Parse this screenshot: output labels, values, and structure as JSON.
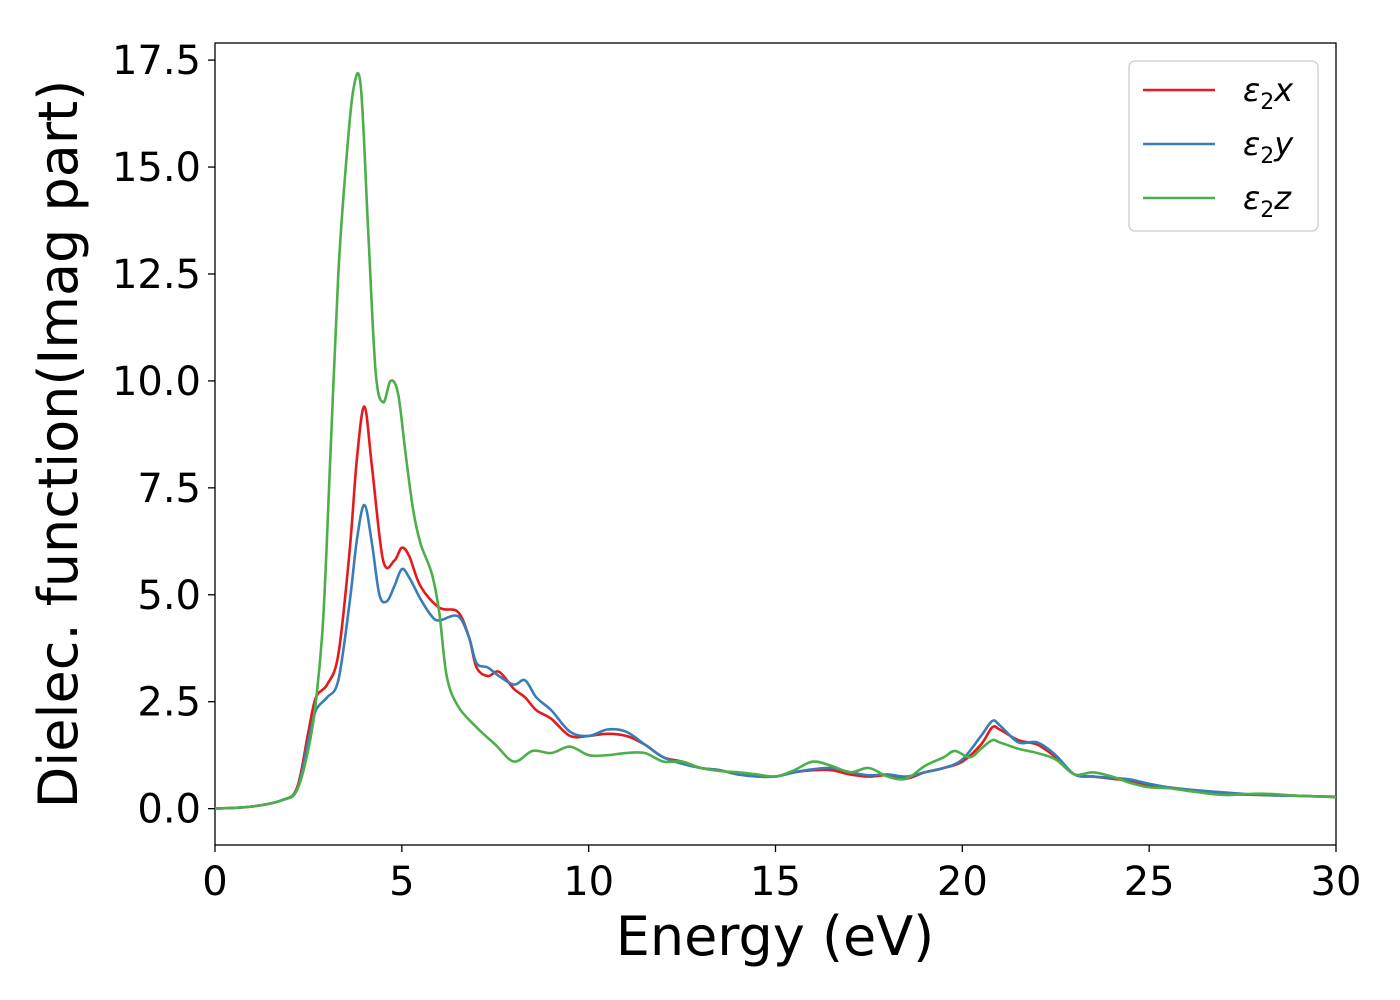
{
  "chart_data": {
    "type": "line",
    "xlabel": "Energy (eV)",
    "ylabel": "Dielec. function(Imag part)",
    "xlim": [
      0,
      30
    ],
    "ylim": [
      -0.85,
      17.9
    ],
    "x_ticks": [
      0,
      5,
      10,
      15,
      20,
      25,
      30
    ],
    "x_tick_labels": [
      "0",
      "5",
      "10",
      "15",
      "20",
      "25",
      "30"
    ],
    "y_ticks": [
      0.0,
      2.5,
      5.0,
      7.5,
      10.0,
      12.5,
      15.0,
      17.5
    ],
    "y_tick_labels": [
      "0.0",
      "2.5",
      "5.0",
      "7.5",
      "10.0",
      "12.5",
      "15.0",
      "17.5"
    ],
    "grid": false,
    "legend_position": "top-right",
    "series": [
      {
        "name": "ε₂x",
        "legend_base": "ε",
        "legend_sub": "2",
        "legend_suffix": "x",
        "color": "#e41a1c",
        "x": [
          0,
          1,
          1.8,
          2.2,
          2.5,
          2.7,
          3.0,
          3.3,
          3.6,
          3.8,
          4.0,
          4.2,
          4.5,
          4.8,
          5.0,
          5.2,
          5.5,
          6.0,
          6.5,
          6.8,
          7.0,
          7.3,
          7.6,
          8.0,
          8.3,
          8.6,
          9.0,
          9.5,
          10.0,
          10.5,
          11.0,
          11.5,
          12.0,
          12.5,
          13.0,
          13.5,
          14.0,
          14.5,
          15.0,
          15.5,
          16.0,
          16.5,
          17.0,
          17.5,
          18.0,
          18.5,
          19.0,
          19.5,
          20.0,
          20.5,
          20.8,
          21.0,
          21.5,
          22.0,
          22.5,
          23.0,
          23.5,
          24.0,
          24.5,
          25.0,
          25.5,
          26.0,
          27.0,
          28.0,
          29.0,
          30.0
        ],
        "y": [
          0.0,
          0.05,
          0.2,
          0.5,
          1.8,
          2.6,
          2.9,
          3.6,
          6.0,
          8.2,
          9.4,
          8.0,
          5.8,
          5.8,
          6.1,
          5.9,
          5.2,
          4.7,
          4.6,
          4.0,
          3.3,
          3.1,
          3.2,
          2.8,
          2.6,
          2.3,
          2.1,
          1.7,
          1.7,
          1.75,
          1.7,
          1.5,
          1.2,
          1.1,
          0.95,
          0.9,
          0.8,
          0.78,
          0.75,
          0.85,
          0.9,
          0.9,
          0.8,
          0.75,
          0.78,
          0.7,
          0.85,
          0.95,
          1.1,
          1.5,
          1.9,
          1.85,
          1.6,
          1.5,
          1.2,
          0.8,
          0.75,
          0.7,
          0.65,
          0.55,
          0.5,
          0.45,
          0.35,
          0.32,
          0.3,
          0.27
        ]
      },
      {
        "name": "ε₂y",
        "legend_base": "ε",
        "legend_sub": "2",
        "legend_suffix": "y",
        "color": "#377eb8",
        "x": [
          0,
          1,
          1.8,
          2.2,
          2.5,
          2.7,
          3.0,
          3.3,
          3.6,
          3.8,
          4.0,
          4.2,
          4.4,
          4.6,
          4.8,
          5.0,
          5.2,
          5.5,
          5.8,
          6.0,
          6.5,
          6.8,
          7.0,
          7.3,
          7.6,
          8.0,
          8.3,
          8.6,
          9.0,
          9.5,
          10.0,
          10.5,
          11.0,
          11.5,
          12.0,
          12.5,
          13.0,
          13.5,
          14.0,
          14.5,
          15.0,
          15.5,
          16.0,
          16.5,
          17.0,
          17.5,
          18.0,
          18.5,
          19.0,
          19.5,
          20.0,
          20.5,
          20.8,
          21.0,
          21.5,
          22.0,
          22.5,
          23.0,
          23.5,
          24.0,
          24.5,
          25.0,
          25.5,
          26.0,
          27.0,
          28.0,
          29.0,
          30.0
        ],
        "y": [
          0.0,
          0.05,
          0.2,
          0.45,
          1.6,
          2.3,
          2.6,
          3.0,
          4.8,
          6.3,
          7.1,
          6.2,
          5.0,
          4.85,
          5.2,
          5.6,
          5.4,
          4.9,
          4.5,
          4.4,
          4.5,
          4.0,
          3.4,
          3.3,
          3.1,
          2.9,
          3.0,
          2.6,
          2.3,
          1.8,
          1.7,
          1.85,
          1.8,
          1.5,
          1.2,
          1.05,
          0.95,
          0.9,
          0.8,
          0.75,
          0.75,
          0.85,
          0.92,
          0.95,
          0.85,
          0.78,
          0.8,
          0.75,
          0.85,
          0.95,
          1.15,
          1.7,
          2.05,
          1.95,
          1.55,
          1.55,
          1.25,
          0.8,
          0.75,
          0.72,
          0.68,
          0.58,
          0.5,
          0.45,
          0.38,
          0.32,
          0.3,
          0.28
        ]
      },
      {
        "name": "ε₂z",
        "legend_base": "ε",
        "legend_sub": "2",
        "legend_suffix": "z",
        "color": "#4daf4a",
        "x": [
          0,
          1,
          1.8,
          2.2,
          2.5,
          2.7,
          2.9,
          3.1,
          3.3,
          3.5,
          3.7,
          3.9,
          4.1,
          4.3,
          4.5,
          4.7,
          4.9,
          5.1,
          5.3,
          5.5,
          5.8,
          6.0,
          6.2,
          6.5,
          7.0,
          7.5,
          8.0,
          8.5,
          9.0,
          9.5,
          10.0,
          10.5,
          11.0,
          11.5,
          12.0,
          12.5,
          13.0,
          13.5,
          14.0,
          14.5,
          15.0,
          15.5,
          16.0,
          16.5,
          17.0,
          17.5,
          18.0,
          18.5,
          19.0,
          19.5,
          19.8,
          20.2,
          20.5,
          20.8,
          21.0,
          21.5,
          22.0,
          22.5,
          23.0,
          23.5,
          24.0,
          24.5,
          25.0,
          25.5,
          26.0,
          27.0,
          28.0,
          29.0,
          30.0
        ],
        "y": [
          0.0,
          0.05,
          0.2,
          0.45,
          1.4,
          2.5,
          4.5,
          8.5,
          12.5,
          15.0,
          16.8,
          16.9,
          13.5,
          10.2,
          9.5,
          10.0,
          9.7,
          8.3,
          7.0,
          6.2,
          5.5,
          4.6,
          3.1,
          2.4,
          1.9,
          1.5,
          1.1,
          1.35,
          1.3,
          1.45,
          1.25,
          1.25,
          1.3,
          1.3,
          1.1,
          1.1,
          0.95,
          0.88,
          0.85,
          0.8,
          0.75,
          0.9,
          1.1,
          1.0,
          0.85,
          0.95,
          0.75,
          0.7,
          1.0,
          1.2,
          1.35,
          1.2,
          1.4,
          1.6,
          1.55,
          1.4,
          1.3,
          1.15,
          0.8,
          0.85,
          0.75,
          0.6,
          0.5,
          0.48,
          0.42,
          0.32,
          0.35,
          0.3,
          0.27
        ]
      }
    ]
  }
}
